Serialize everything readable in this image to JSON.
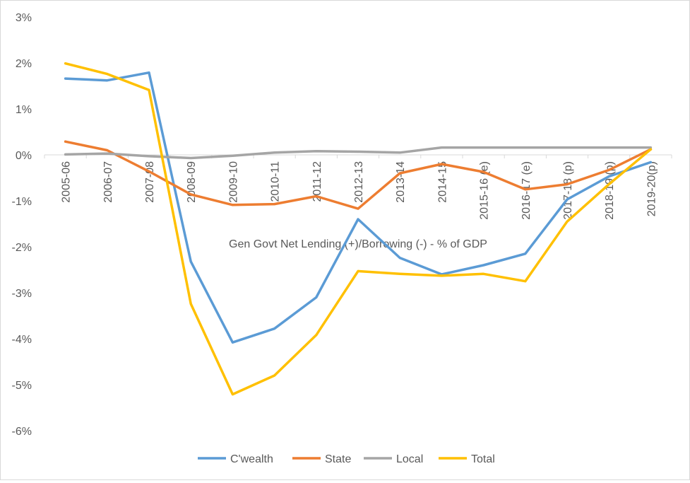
{
  "chart_data": {
    "type": "line",
    "title": "Gen Govt Net Lending (+)/Borrowing (-) - % of GDP",
    "xlabel": "",
    "ylabel": "",
    "ylim": [
      -6,
      3
    ],
    "ytick_values": [
      3,
      2,
      1,
      0,
      -1,
      -2,
      -3,
      -4,
      -5,
      -6
    ],
    "ytick_labels": [
      "3%",
      "2%",
      "1%",
      "0%",
      "-1%",
      "-2%",
      "-3%",
      "-4%",
      "-5%",
      "-6%"
    ],
    "categories": [
      "2005-06",
      "2006-07",
      "2007-08",
      "2008-09",
      "2009-10",
      "2010-11",
      "2011-12",
      "2012-13",
      "2013-14",
      "2014-15",
      "2015-16 (e)",
      "2016-17 (e)",
      "2017-18 (p)",
      "2018-19 (p)",
      "2019-20(p)"
    ],
    "legend_position": "bottom",
    "grid": false,
    "series": [
      {
        "name": "C'wealth",
        "color": "#5b9bd5",
        "values": [
          1.66,
          1.62,
          1.79,
          -2.32,
          -4.08,
          -3.78,
          -3.1,
          -1.4,
          -2.24,
          -2.6,
          -2.4,
          -2.15,
          -0.97,
          -0.47,
          -0.16
        ]
      },
      {
        "name": "State",
        "color": "#ed7d31",
        "values": [
          0.29,
          0.1,
          -0.36,
          -0.86,
          -1.09,
          -1.07,
          -0.9,
          -1.17,
          -0.4,
          -0.2,
          -0.37,
          -0.75,
          -0.64,
          -0.33,
          0.12
        ]
      },
      {
        "name": "Local",
        "color": "#a5a5a5",
        "values": [
          0.01,
          0.03,
          -0.03,
          -0.07,
          -0.02,
          0.05,
          0.08,
          0.07,
          0.05,
          0.16,
          0.16,
          0.16,
          0.16,
          0.16,
          0.16
        ]
      },
      {
        "name": "Total",
        "color": "#ffc000",
        "values": [
          1.99,
          1.76,
          1.41,
          -3.24,
          -5.21,
          -4.8,
          -3.92,
          -2.53,
          -2.59,
          -2.63,
          -2.59,
          -2.75,
          -1.45,
          -0.64,
          0.12
        ]
      }
    ]
  }
}
